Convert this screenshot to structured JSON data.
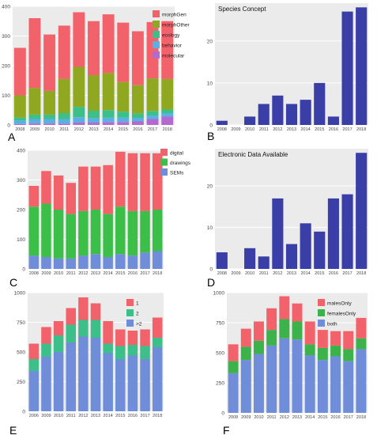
{
  "panel_letters": [
    "A",
    "B",
    "C",
    "D",
    "E",
    "F"
  ],
  "chart_data": [
    {
      "panel": "A",
      "type": "bar",
      "stacked": true,
      "categories": [
        "2008",
        "2009",
        "2010",
        "2011",
        "2012",
        "2013",
        "2014",
        "2015",
        "2016",
        "2017",
        "2018"
      ],
      "ylim": [
        0,
        400
      ],
      "yticks": [
        0,
        100,
        200,
        300,
        400
      ],
      "legend_position": "top-right",
      "series": [
        {
          "name": "molecular",
          "color": "#b36ad0",
          "values": [
            3,
            5,
            5,
            5,
            8,
            8,
            10,
            10,
            12,
            20,
            28
          ]
        },
        {
          "name": "behavior",
          "color": "#5ab0e0",
          "values": [
            12,
            15,
            15,
            15,
            18,
            15,
            15,
            15,
            12,
            12,
            12
          ]
        },
        {
          "name": "ecology",
          "color": "#3cbf88",
          "values": [
            10,
            15,
            15,
            20,
            35,
            25,
            25,
            20,
            15,
            15,
            12
          ]
        },
        {
          "name": "morphOther",
          "color": "#8fa820",
          "values": [
            75,
            90,
            80,
            115,
            135,
            120,
            125,
            100,
            95,
            110,
            103
          ]
        },
        {
          "name": "morphGen",
          "color": "#f2626a",
          "values": [
            160,
            235,
            190,
            180,
            184,
            182,
            198,
            200,
            182,
            190,
            195
          ]
        }
      ]
    },
    {
      "panel": "B",
      "type": "bar",
      "title": "Species Concept",
      "categories": [
        "2008",
        "2009",
        "2010",
        "2011",
        "2012",
        "2013",
        "2014",
        "2015",
        "2016",
        "2017",
        "2018"
      ],
      "ylim": [
        0,
        29
      ],
      "yticks": [
        0,
        10,
        20
      ],
      "series": [
        {
          "color": "#3a3fa8",
          "values": [
            1,
            0,
            2,
            5,
            7,
            5,
            6,
            10,
            2,
            27,
            28
          ]
        }
      ]
    },
    {
      "panel": "C",
      "type": "bar",
      "stacked": true,
      "categories": [
        "2008",
        "2009",
        "2010",
        "2011",
        "2012",
        "2013",
        "2014",
        "2015",
        "2016",
        "2017",
        "2018"
      ],
      "ylim": [
        0,
        400
      ],
      "yticks": [
        0,
        100,
        200,
        300,
        400
      ],
      "legend_position": "top-right",
      "series": [
        {
          "name": "SEMs",
          "color": "#6f8dd8",
          "values": [
            45,
            40,
            35,
            35,
            45,
            50,
            40,
            50,
            45,
            55,
            60
          ]
        },
        {
          "name": "drawings",
          "color": "#3bbf48",
          "values": [
            165,
            180,
            165,
            150,
            150,
            150,
            145,
            160,
            150,
            140,
            140
          ]
        },
        {
          "name": "digital",
          "color": "#f2626a",
          "values": [
            70,
            110,
            115,
            105,
            150,
            145,
            165,
            185,
            195,
            195,
            190
          ]
        }
      ]
    },
    {
      "panel": "D",
      "type": "bar",
      "title": "Electronic Data Available",
      "categories": [
        "2008",
        "2009",
        "2010",
        "2011",
        "2012",
        "2013",
        "2014",
        "2015",
        "2016",
        "2017",
        "2018"
      ],
      "ylim": [
        0,
        29
      ],
      "yticks": [
        0,
        10,
        20
      ],
      "series": [
        {
          "color": "#3a3fa8",
          "values": [
            4,
            0,
            5,
            3,
            17,
            6,
            11,
            9,
            17,
            18,
            28
          ]
        }
      ]
    },
    {
      "panel": "E",
      "type": "bar",
      "stacked": true,
      "categories": [
        "2006",
        "2009",
        "2010",
        "2011",
        "2012",
        "2013",
        "2014",
        "2015",
        "2016",
        "2017",
        "2018"
      ],
      "ylim": [
        0,
        1000
      ],
      "yticks": [
        0,
        250,
        500,
        750,
        1000
      ],
      "legend_position": "top-right",
      "series": [
        {
          "name": ">2",
          "color": "#6f8dd8",
          "values": [
            340,
            460,
            500,
            580,
            630,
            620,
            490,
            440,
            470,
            440,
            540
          ]
        },
        {
          "name": "2",
          "color": "#3cbf88",
          "values": [
            100,
            110,
            140,
            150,
            140,
            150,
            80,
            110,
            90,
            110,
            80
          ]
        },
        {
          "name": "1",
          "color": "#f2626a",
          "values": [
            130,
            140,
            120,
            140,
            190,
            140,
            190,
            140,
            120,
            140,
            170
          ]
        }
      ]
    },
    {
      "panel": "F",
      "type": "bar",
      "stacked": true,
      "categories": [
        "2008",
        "2009",
        "2010",
        "2011",
        "2012",
        "2013",
        "2014",
        "2015",
        "2016",
        "2017",
        "2018"
      ],
      "ylim": [
        0,
        1000
      ],
      "yticks": [
        0,
        250,
        500,
        750,
        1000
      ],
      "legend_position": "top-right",
      "series": [
        {
          "name": "both",
          "color": "#6f8dd8",
          "values": [
            330,
            440,
            490,
            560,
            620,
            610,
            480,
            440,
            470,
            430,
            530
          ]
        },
        {
          "name": "femalesOnly",
          "color": "#3bb24a",
          "values": [
            100,
            110,
            110,
            130,
            160,
            150,
            90,
            100,
            90,
            100,
            90
          ]
        },
        {
          "name": "malesOnly",
          "color": "#f2626a",
          "values": [
            140,
            150,
            160,
            180,
            190,
            150,
            190,
            150,
            120,
            150,
            170
          ]
        }
      ]
    }
  ]
}
